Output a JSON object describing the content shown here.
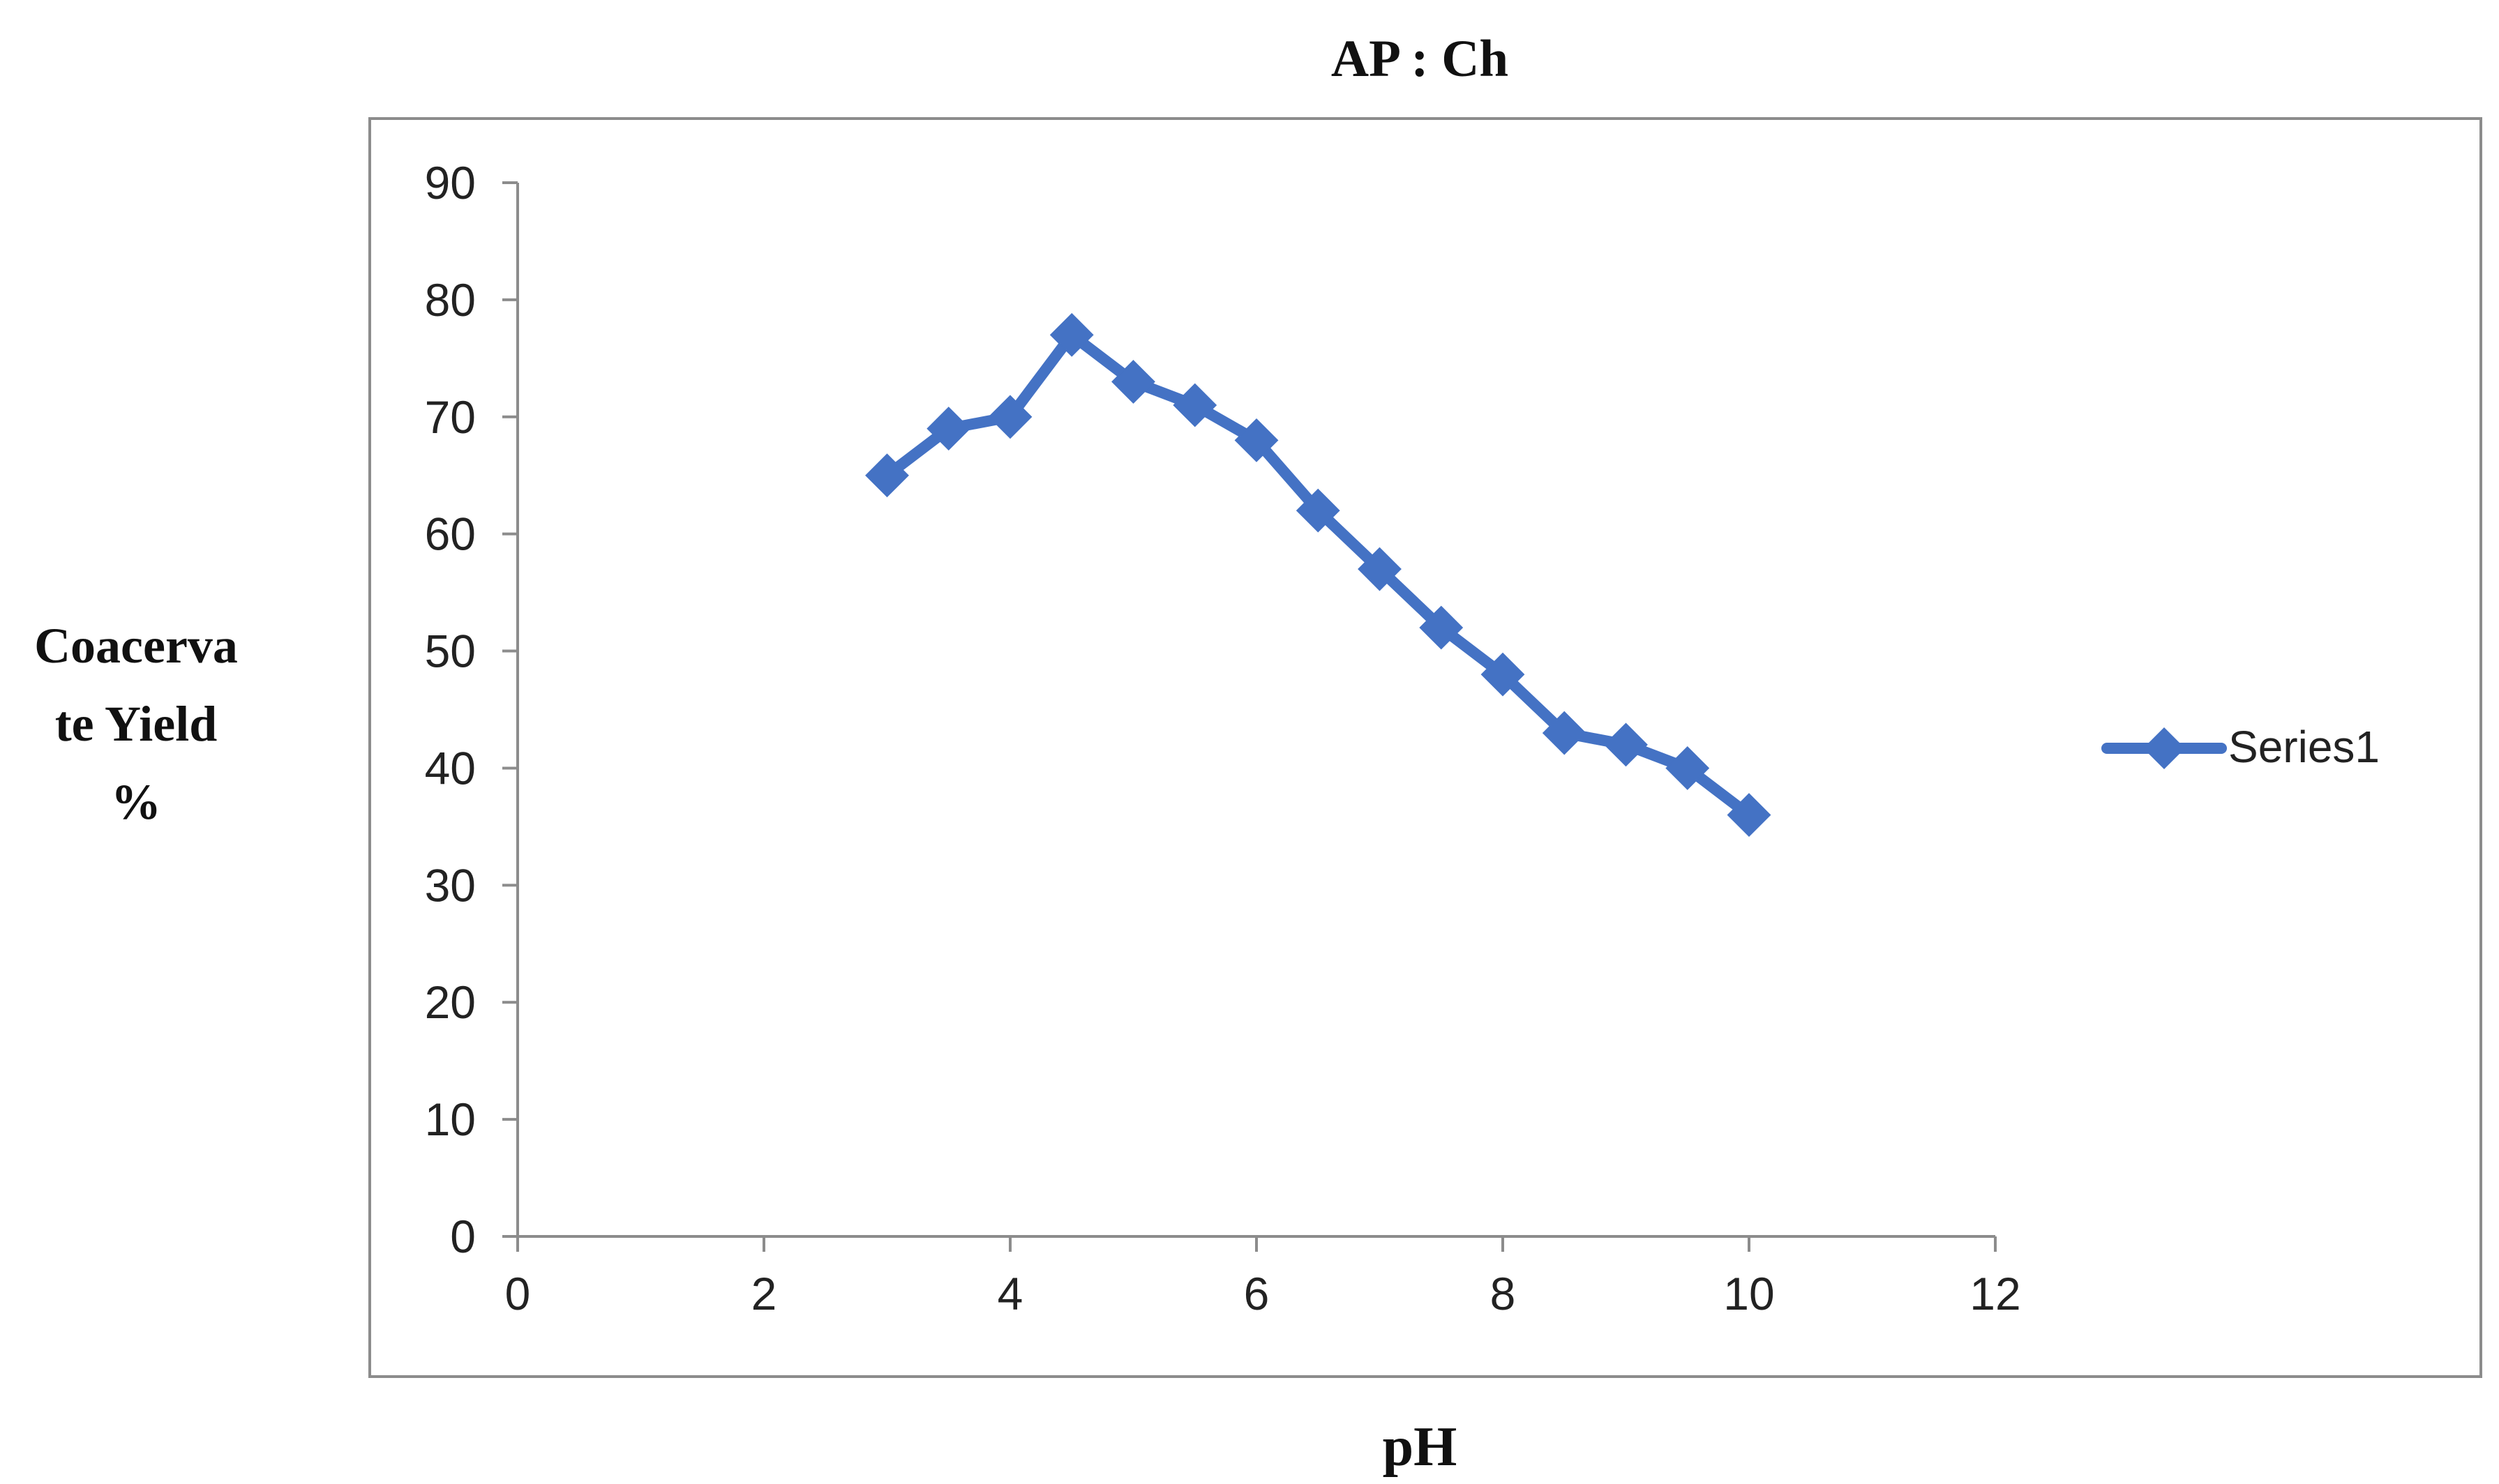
{
  "chart_data": {
    "type": "line",
    "title": "AP : Ch",
    "xlabel": "pH",
    "ylabel": "Coacerva te Yield %",
    "ylabel_lines": [
      "Coacerva",
      "te Yield",
      "%"
    ],
    "xlim": [
      0,
      12
    ],
    "ylim": [
      0,
      90
    ],
    "x_ticks": [
      "0",
      "2",
      "4",
      "6",
      "8",
      "10",
      "12"
    ],
    "y_ticks": [
      "0",
      "10",
      "20",
      "30",
      "40",
      "50",
      "60",
      "70",
      "80",
      "90"
    ],
    "grid": false,
    "legend_position": "right",
    "marker": "diamond",
    "colors": {
      "series": "#4472C4",
      "axis": "#8c8c8c",
      "frame": "#8c8c8c"
    },
    "series": [
      {
        "name": "Series1",
        "x": [
          3,
          3.5,
          4,
          4.5,
          5,
          5.5,
          6,
          6.5,
          7,
          7.5,
          8,
          8.5,
          9,
          9.5,
          10
        ],
        "y": [
          65,
          69,
          70,
          77,
          73,
          71,
          68,
          62,
          57,
          52,
          48,
          43,
          42,
          40,
          36
        ]
      }
    ]
  }
}
